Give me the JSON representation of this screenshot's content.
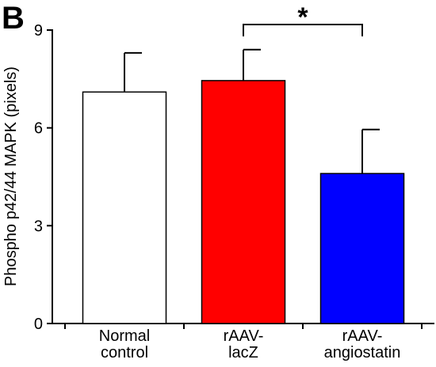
{
  "panel_label": "B",
  "chart_data": {
    "type": "bar",
    "title": "",
    "xlabel": "",
    "ylabel": "Phospho p42/44 MAPK (pixels)",
    "ylim": [
      0,
      9
    ],
    "yticks": [
      0,
      3,
      6,
      9
    ],
    "grid": false,
    "categories": [
      [
        "Normal",
        "control"
      ],
      [
        "rAAV-",
        "lacZ"
      ],
      [
        "rAAV-",
        "angiostatin"
      ]
    ],
    "values": [
      7.1,
      7.45,
      4.6
    ],
    "errors": [
      1.2,
      0.95,
      1.35
    ],
    "colors": [
      "#ffffff",
      "#ff0000",
      "#0000ff"
    ],
    "significance": {
      "from": 1,
      "to": 2,
      "label": "*"
    }
  }
}
